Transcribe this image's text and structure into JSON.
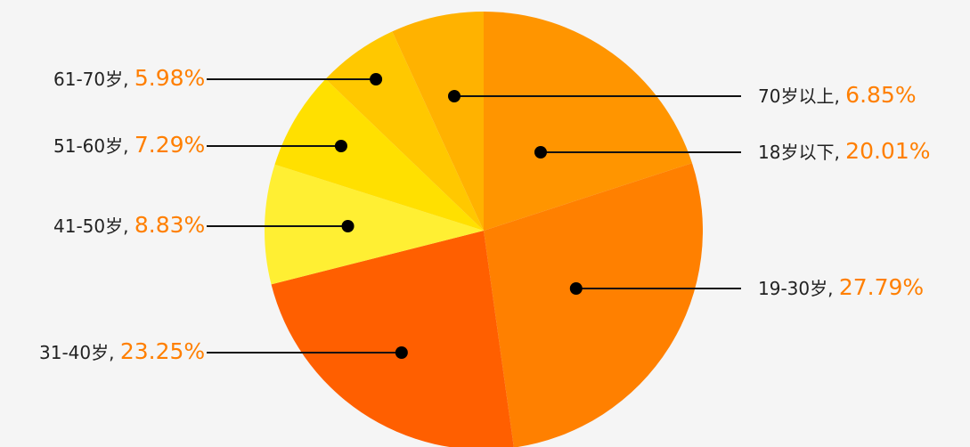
{
  "chart_data": {
    "type": "pie",
    "title": "",
    "categories": [
      "18岁以下",
      "19-30岁",
      "31-40岁",
      "41-50岁",
      "51-60岁",
      "61-70岁",
      "70岁以上"
    ],
    "values": [
      20.01,
      27.79,
      23.25,
      8.83,
      7.29,
      5.98,
      6.85
    ],
    "display_values": [
      "20.01%",
      "27.79%",
      "23.25%",
      "8.83%",
      "7.29%",
      "5.98%",
      "6.85%"
    ],
    "unit": "%",
    "colors": [
      "#ff9500",
      "#ff8000",
      "#ff5f00",
      "#ffef33",
      "#ffe000",
      "#ffc800",
      "#ffb200"
    ],
    "label_color": "#ff7f00",
    "legend": "none",
    "grid": false
  }
}
